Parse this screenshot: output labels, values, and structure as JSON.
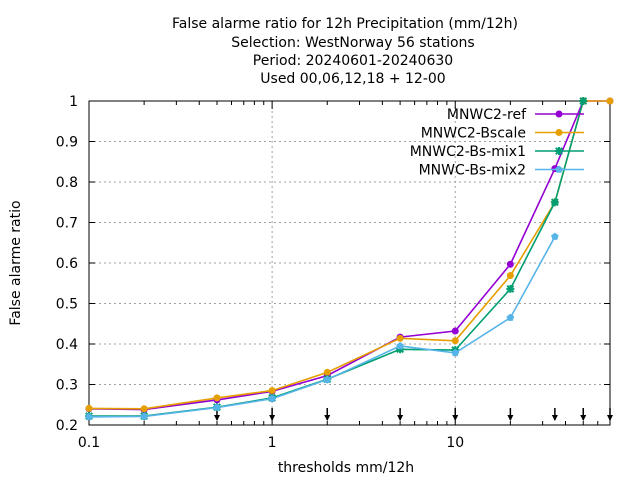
{
  "chart_data": {
    "type": "line",
    "title_lines": [
      "False alarme ratio  for 12h Precipitation (mm/12h)",
      "Selection: WestNorway     56 stations",
      "Period: 20240601-20240630",
      "Used 00,06,12,18 + 12-00"
    ],
    "xlabel": "thresholds mm/12h",
    "ylabel": "False alarme ratio",
    "x_scale": "log",
    "xlim": [
      0.1,
      70
    ],
    "ylim": [
      0.2,
      1.0
    ],
    "x_ticks": [
      0.1,
      1,
      10
    ],
    "x_tick_labels": [
      "0.1",
      "1",
      "10"
    ],
    "y_ticks": [
      0.2,
      0.3,
      0.4,
      0.5,
      0.6,
      0.7,
      0.8,
      0.9,
      1.0
    ],
    "y_tick_labels": [
      "0.2",
      "0.3",
      "0.4",
      "0.5",
      "0.6",
      "0.7",
      "0.8",
      "0.9",
      "1"
    ],
    "grid": true,
    "legend_position": "top-right",
    "threshold_markers": [
      0.1,
      0.2,
      0.5,
      1,
      2,
      5,
      10,
      20,
      35,
      50,
      70
    ],
    "series": [
      {
        "name": "MNWC2-ref",
        "color": "#9400d3",
        "marker": "circle",
        "x": [
          0.1,
          0.2,
          0.5,
          1,
          2,
          5,
          10,
          20,
          35,
          50,
          70
        ],
        "y": [
          0.24,
          0.238,
          0.262,
          0.283,
          0.322,
          0.417,
          0.432,
          0.597,
          0.833,
          1.0,
          1.0
        ]
      },
      {
        "name": "MNWC2-Bscale",
        "color": "#e69f00",
        "marker": "circle",
        "x": [
          0.1,
          0.2,
          0.5,
          1,
          2,
          5,
          10,
          20,
          35,
          50,
          70
        ],
        "y": [
          0.241,
          0.24,
          0.267,
          0.285,
          0.33,
          0.414,
          0.408,
          0.569,
          0.75,
          1.0,
          1.0
        ]
      },
      {
        "name": "MNWC2-Bs-mix1",
        "color": "#009e73",
        "marker": "star",
        "x": [
          0.1,
          0.2,
          0.5,
          1,
          2,
          5,
          10,
          20,
          35,
          50
        ],
        "y": [
          0.222,
          0.222,
          0.244,
          0.267,
          0.313,
          0.387,
          0.385,
          0.536,
          0.75,
          1.0
        ]
      },
      {
        "name": "MNWC-Bs-mix2",
        "color": "#56b4e9",
        "marker": "pentagon",
        "x": [
          0.1,
          0.2,
          0.5,
          1,
          2,
          5,
          10,
          20,
          35
        ],
        "y": [
          0.22,
          0.221,
          0.243,
          0.265,
          0.312,
          0.395,
          0.378,
          0.465,
          0.665
        ]
      }
    ]
  }
}
